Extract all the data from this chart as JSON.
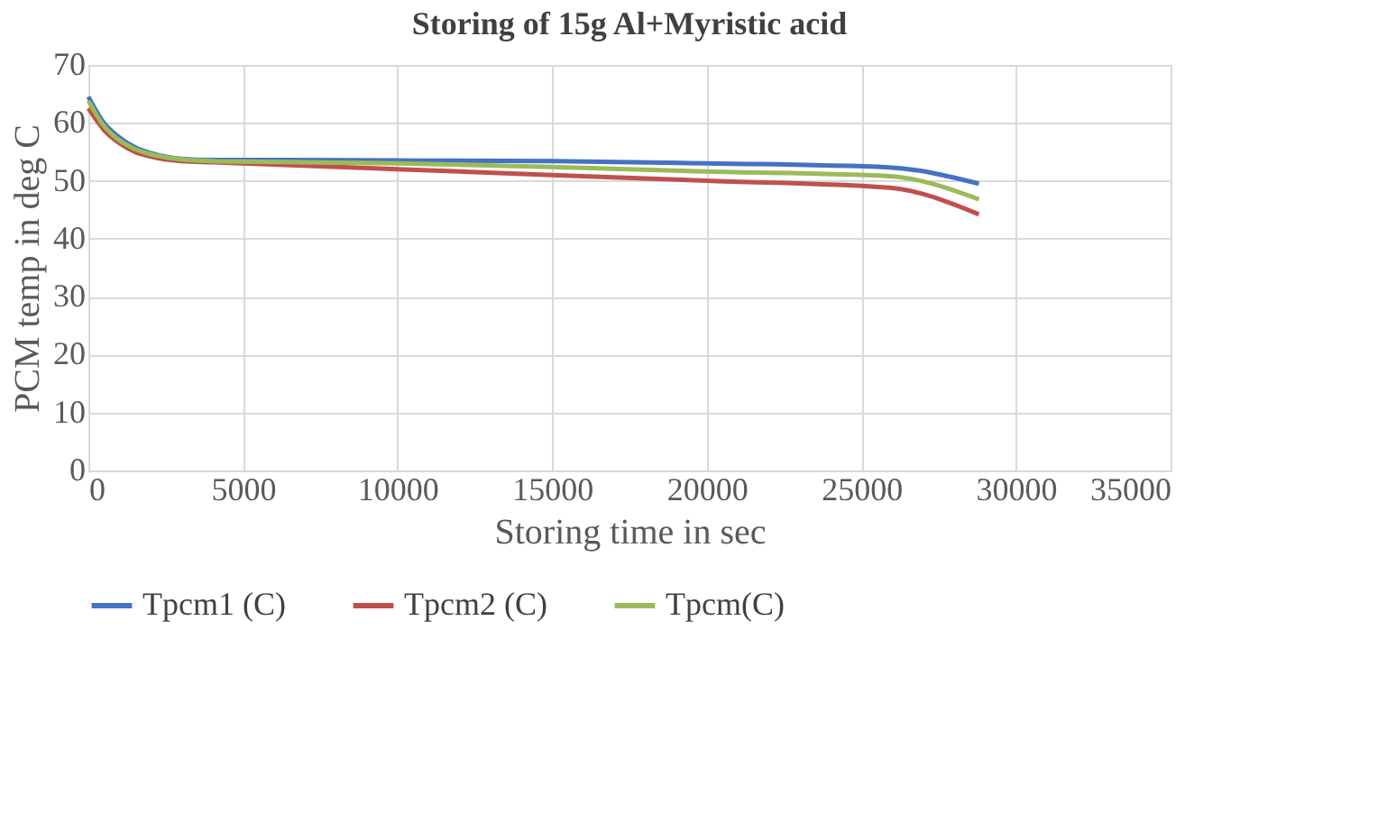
{
  "chart_data": {
    "type": "line",
    "title": "Storing of 15g Al+Myristic acid",
    "xlabel": "Storing time in sec",
    "ylabel": "PCM temp in deg C",
    "x": [
      0,
      500,
      1000,
      1500,
      2000,
      3000,
      4000,
      5000,
      10000,
      15000,
      20000,
      25900,
      28800
    ],
    "series": [
      {
        "name": "Tpcm1 (C)",
        "color": "#4472c4",
        "values": [
          64.5,
          60,
          57.5,
          55.8,
          54.8,
          53.8,
          53.6,
          53.6,
          53.5,
          53.4,
          53.0,
          52.3,
          49.5
        ]
      },
      {
        "name": "Tpcm2 (C)",
        "color": "#c0504d",
        "values": [
          62.5,
          58.8,
          56.5,
          55,
          54.2,
          53.4,
          53.2,
          53.0,
          52.0,
          51.0,
          50.0,
          48.8,
          44.2
        ]
      },
      {
        "name": "Tpcm(C)",
        "color": "#9bbb59",
        "values": [
          63.8,
          59.5,
          57,
          55.5,
          54.6,
          53.7,
          53.4,
          53.3,
          53.0,
          52.4,
          51.6,
          50.8,
          46.8
        ]
      }
    ],
    "xlim": [
      0,
      35000
    ],
    "xticks": [
      0,
      5000,
      10000,
      15000,
      20000,
      25000,
      30000,
      35000
    ],
    "ylim": [
      0,
      70
    ],
    "yticks": [
      0,
      10,
      20,
      30,
      40,
      50,
      60,
      70
    ],
    "grid": true,
    "legend": "bottom",
    "marker": "none",
    "line_style": "solid"
  }
}
